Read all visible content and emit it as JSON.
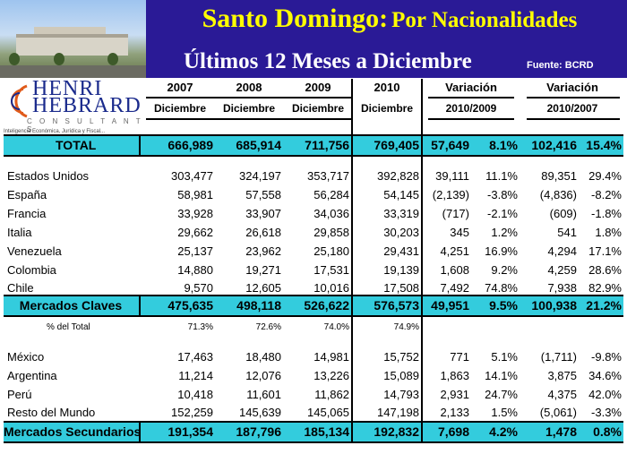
{
  "header": {
    "title_main": "Santo Domingo:",
    "title_rest": "Por Nacionalidades",
    "subtitle": "Últimos 12 Meses a Diciembre",
    "source": "Fuente: BCRD",
    "colors": {
      "banner": "#2a1a96",
      "title": "#ffff00",
      "highlight_row": "#33ccdd"
    }
  },
  "logo": {
    "name_line1": "HENRI",
    "name_line2": "HEBRARD",
    "subtitle": "C O N S U L T A N T S",
    "tagline": "Inteligencia Económica, Jurídica y Fiscal..."
  },
  "columns": {
    "y2007": "2007",
    "y2008": "2008",
    "y2009": "2009",
    "y2010": "2010",
    "var1": "Variación",
    "var2": "Variación",
    "dic": "Diciembre",
    "per1": "2010/2009",
    "per2": "2010/2007"
  },
  "rows": [
    {
      "label": "TOTAL",
      "v2007": "666,989",
      "v2008": "685,914",
      "v2009": "711,756",
      "v2010": "769,405",
      "d1": "57,649",
      "p1": "8.1%",
      "d2": "102,416",
      "p2": "15.4%"
    },
    {
      "label": "Estados Unidos",
      "v2007": "303,477",
      "v2008": "324,197",
      "v2009": "353,717",
      "v2010": "392,828",
      "d1": "39,111",
      "p1": "11.1%",
      "d2": "89,351",
      "p2": "29.4%"
    },
    {
      "label": "España",
      "v2007": "58,981",
      "v2008": "57,558",
      "v2009": "56,284",
      "v2010": "54,145",
      "d1": "(2,139)",
      "p1": "-3.8%",
      "d2": "(4,836)",
      "p2": "-8.2%"
    },
    {
      "label": "Francia",
      "v2007": "33,928",
      "v2008": "33,907",
      "v2009": "34,036",
      "v2010": "33,319",
      "d1": "(717)",
      "p1": "-2.1%",
      "d2": "(609)",
      "p2": "-1.8%"
    },
    {
      "label": "Italia",
      "v2007": "29,662",
      "v2008": "26,618",
      "v2009": "29,858",
      "v2010": "30,203",
      "d1": "345",
      "p1": "1.2%",
      "d2": "541",
      "p2": "1.8%"
    },
    {
      "label": "Venezuela",
      "v2007": "25,137",
      "v2008": "23,962",
      "v2009": "25,180",
      "v2010": "29,431",
      "d1": "4,251",
      "p1": "16.9%",
      "d2": "4,294",
      "p2": "17.1%"
    },
    {
      "label": "Colombia",
      "v2007": "14,880",
      "v2008": "19,271",
      "v2009": "17,531",
      "v2010": "19,139",
      "d1": "1,608",
      "p1": "9.2%",
      "d2": "4,259",
      "p2": "28.6%"
    },
    {
      "label": "Chile",
      "v2007": "9,570",
      "v2008": "12,605",
      "v2009": "10,016",
      "v2010": "17,508",
      "d1": "7,492",
      "p1": "74.8%",
      "d2": "7,938",
      "p2": "82.9%"
    },
    {
      "label": "Mercados Claves",
      "v2007": "475,635",
      "v2008": "498,118",
      "v2009": "526,622",
      "v2010": "576,573",
      "d1": "49,951",
      "p1": "9.5%",
      "d2": "100,938",
      "p2": "21.2%"
    },
    {
      "label": "% del Total",
      "v2007": "71.3%",
      "v2008": "72.6%",
      "v2009": "74.0%",
      "v2010": "74.9%",
      "d1": "",
      "p1": "",
      "d2": "",
      "p2": ""
    },
    {
      "label": "México",
      "v2007": "17,463",
      "v2008": "18,480",
      "v2009": "14,981",
      "v2010": "15,752",
      "d1": "771",
      "p1": "5.1%",
      "d2": "(1,711)",
      "p2": "-9.8%"
    },
    {
      "label": "Argentina",
      "v2007": "11,214",
      "v2008": "12,076",
      "v2009": "13,226",
      "v2010": "15,089",
      "d1": "1,863",
      "p1": "14.1%",
      "d2": "3,875",
      "p2": "34.6%"
    },
    {
      "label": "Perú",
      "v2007": "10,418",
      "v2008": "11,601",
      "v2009": "11,862",
      "v2010": "14,793",
      "d1": "2,931",
      "p1": "24.7%",
      "d2": "4,375",
      "p2": "42.0%"
    },
    {
      "label": "Resto del Mundo",
      "v2007": "152,259",
      "v2008": "145,639",
      "v2009": "145,065",
      "v2010": "147,198",
      "d1": "2,133",
      "p1": "1.5%",
      "d2": "(5,061)",
      "p2": "-3.3%"
    },
    {
      "label": "Mercados Secundarios",
      "v2007": "191,354",
      "v2008": "187,796",
      "v2009": "185,134",
      "v2010": "192,832",
      "d1": "7,698",
      "p1": "4.2%",
      "d2": "1,478",
      "p2": "0.8%"
    }
  ]
}
